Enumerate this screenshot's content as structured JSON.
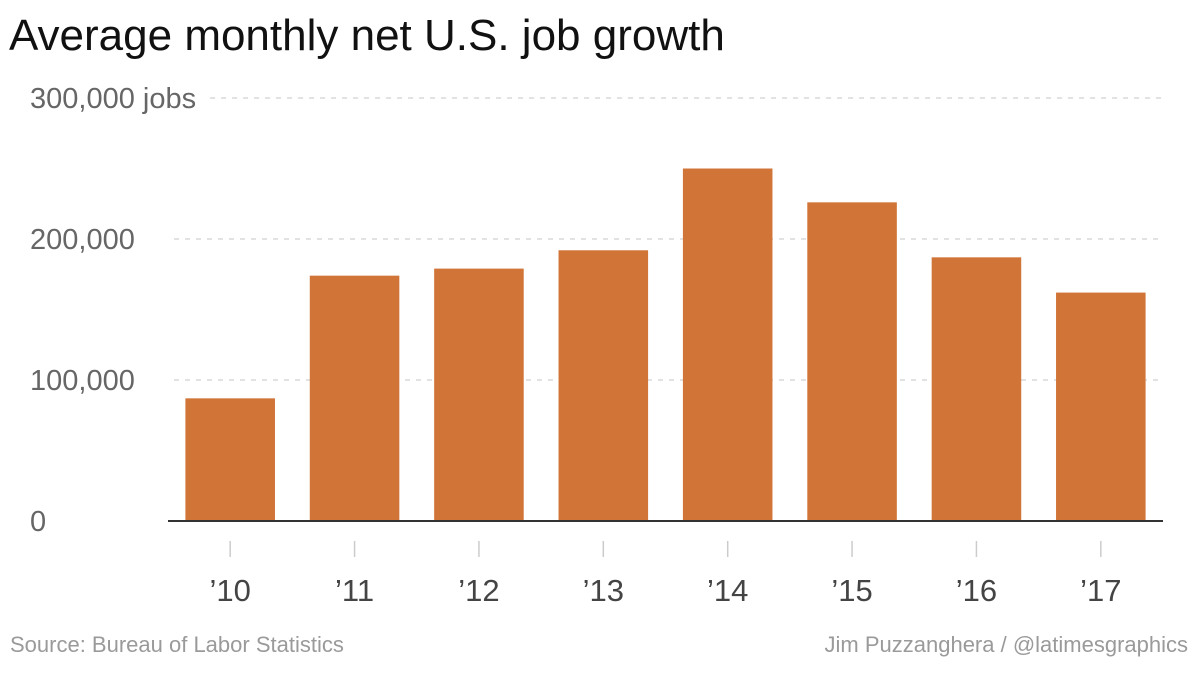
{
  "chart_data": {
    "type": "bar",
    "title": "Average monthly net U.S. job growth",
    "categories": [
      "’10",
      "’11",
      "’12",
      "’13",
      "’14",
      "’15",
      "’16",
      "’17"
    ],
    "values": [
      87000,
      174000,
      179000,
      192000,
      250000,
      226000,
      187000,
      162000
    ],
    "yticks": [
      {
        "value": 0,
        "label": "0"
      },
      {
        "value": 100000,
        "label": "100,000"
      },
      {
        "value": 200000,
        "label": "200,000"
      },
      {
        "value": 300000,
        "label": "300,000 jobs"
      }
    ],
    "ylim": [
      0,
      300000
    ],
    "xlabel": "",
    "ylabel": "",
    "grid": true,
    "bar_color": "#d07437",
    "grid_color": "#d8d8d8",
    "axis_color": "#333333"
  },
  "footer": {
    "source": "Source: Bureau of Labor Statistics",
    "credit": "Jim Puzzanghera / @latimesgraphics"
  }
}
